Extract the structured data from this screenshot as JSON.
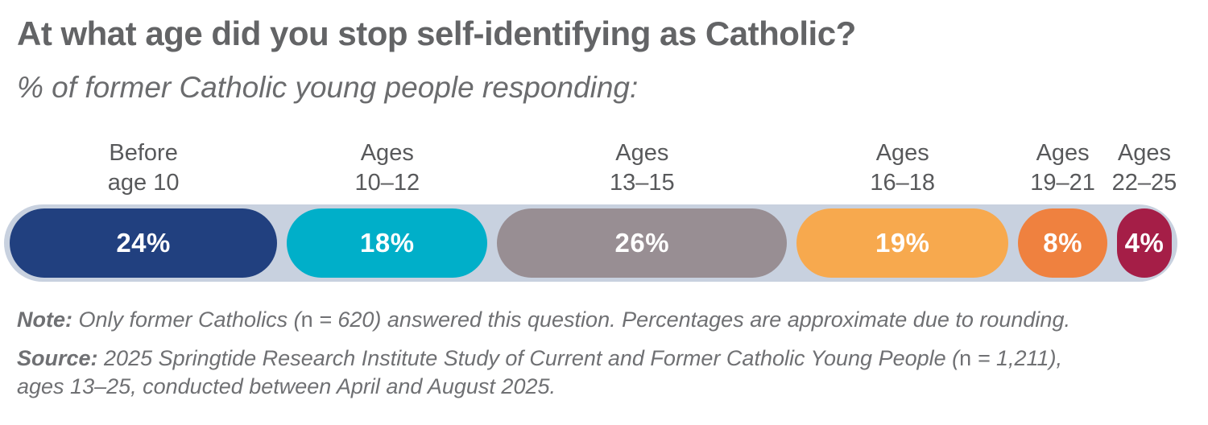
{
  "header": {
    "title": "At what age did you stop self-identifying as Catholic?",
    "subtitle": "% of former Catholic young people responding:"
  },
  "chart_data": {
    "type": "bar",
    "title": "At what age did you stop self-identifying as Catholic?",
    "subtitle": "% of former Catholic young people responding:",
    "unit": "percent",
    "orientation": "horizontal-proportional-pill",
    "categories": [
      "Before age 10",
      "Ages 10–12",
      "Ages 13–15",
      "Ages 16–18",
      "Ages 19–21",
      "Ages 22–25"
    ],
    "values": [
      24,
      18,
      26,
      19,
      8,
      4
    ],
    "segments": [
      {
        "label_line1": "Before",
        "label_line2": "age 10",
        "value": 24,
        "display": "24%",
        "color": "#21407F"
      },
      {
        "label_line1": "Ages",
        "label_line2": "10–12",
        "value": 18,
        "display": "18%",
        "color": "#00AFC9"
      },
      {
        "label_line1": "Ages",
        "label_line2": "13–15",
        "value": 26,
        "display": "26%",
        "color": "#988E93"
      },
      {
        "label_line1": "Ages",
        "label_line2": "16–18",
        "value": 19,
        "display": "19%",
        "color": "#F7A94E"
      },
      {
        "label_line1": "Ages",
        "label_line2": "19–21",
        "value": 8,
        "display": "8%",
        "color": "#EF813F"
      },
      {
        "label_line1": "Ages",
        "label_line2": "22–25",
        "value": 4,
        "display": "4%",
        "color": "#A51E47"
      }
    ],
    "track_color": "#C8D1DF",
    "value_label_color": "#FFFFFF",
    "legend": "none",
    "axes": "none"
  },
  "note": {
    "label": "Note:",
    "pre": " Only former Catholics (",
    "n": "n",
    "post": " = 620) answered this question. Percentages are approximate due to rounding."
  },
  "source": {
    "label": "Source:",
    "pre": " 2025 Springtide Research Institute Study of Current and Former Catholic Young People (",
    "n": "n",
    "post": " = 1,211),",
    "line2": "ages 13–25, conducted between April and August 2025."
  }
}
